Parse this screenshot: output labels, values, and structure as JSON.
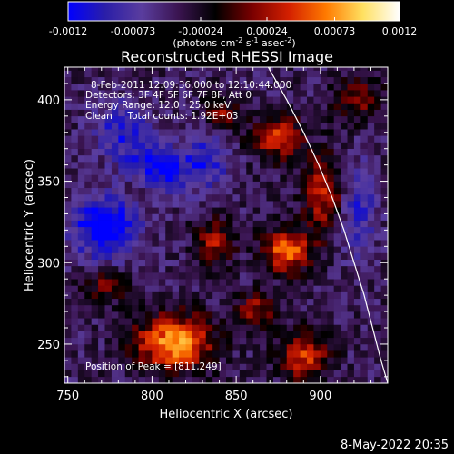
{
  "chart_data": {
    "type": "heatmap",
    "title": "Reconstructed RHESSI Image",
    "xlabel": "Heliocentric X (arcsec)",
    "ylabel": "Heliocentric Y (arcsec)",
    "xlim": [
      748,
      940
    ],
    "ylim": [
      226,
      420
    ],
    "x_ticks": [
      750,
      800,
      850,
      900
    ],
    "y_ticks": [
      250,
      300,
      350,
      400
    ],
    "colorbar": {
      "range": [
        -0.0012,
        0.0012
      ],
      "tick_values": [
        -0.0012,
        -0.00073,
        -0.00024,
        0.00024,
        0.00073,
        0.0012
      ],
      "tick_labels": [
        "-0.0012",
        "-0.00073",
        "-0.00024",
        "0.00024",
        "0.00073",
        "0.0012"
      ],
      "unit_label": "(photons cm",
      "unit_sup1": "-2",
      "unit_mid": " s",
      "unit_sup2": "-1",
      "unit_mid2": " asec",
      "unit_sup3": "-2",
      "unit_end": ")",
      "colors": [
        "#0000ff",
        "#2a1ea8",
        "#5a3d9e",
        "#3a1450",
        "#000000",
        "#7a0000",
        "#d42000",
        "#ff7a00",
        "#ffe060",
        "#ffffff"
      ]
    },
    "grid": false,
    "annotations": {
      "line1": "8-Feb-2011 12:09:36.000 to 12:10:44.000",
      "line2": "Detectors: 3F 4F 5F 6F 7F 8F, Att 0",
      "line3": "Energy Range: 12.0 - 25.0 keV",
      "line4": "Clean     Total counts: 1.92E+03",
      "peak": "Position of Peak = [811,249]"
    },
    "peak_position": [
      811,
      249
    ],
    "limb_curve": [
      [
        869,
        420
      ],
      [
        880,
        400
      ],
      [
        890,
        380
      ],
      [
        899,
        360
      ],
      [
        907,
        340
      ],
      [
        914,
        320
      ],
      [
        920,
        300
      ],
      [
        926,
        280
      ],
      [
        931,
        260
      ],
      [
        936,
        240
      ],
      [
        940,
        226
      ]
    ],
    "bright_regions": [
      {
        "x": 811,
        "y": 249,
        "intensity": 1.0,
        "sx": 16,
        "sy": 12
      },
      {
        "x": 878,
        "y": 305,
        "intensity": 0.85,
        "sx": 10,
        "sy": 9
      },
      {
        "x": 888,
        "y": 240,
        "intensity": 0.7,
        "sx": 10,
        "sy": 10
      },
      {
        "x": 872,
        "y": 375,
        "intensity": 0.75,
        "sx": 10,
        "sy": 9
      },
      {
        "x": 900,
        "y": 340,
        "intensity": 0.6,
        "sx": 9,
        "sy": 18
      },
      {
        "x": 835,
        "y": 310,
        "intensity": 0.55,
        "sx": 8,
        "sy": 10
      },
      {
        "x": 860,
        "y": 268,
        "intensity": 0.55,
        "sx": 8,
        "sy": 8
      },
      {
        "x": 920,
        "y": 400,
        "intensity": 0.45,
        "sx": 10,
        "sy": 10
      },
      {
        "x": 770,
        "y": 285,
        "intensity": 0.4,
        "sx": 10,
        "sy": 8
      },
      {
        "x": 840,
        "y": 390,
        "intensity": 0.45,
        "sx": 7,
        "sy": 8
      },
      {
        "x": 790,
        "y": 345,
        "intensity": 0.35,
        "sx": 7,
        "sy": 7
      }
    ],
    "dark_regions": [
      {
        "x": 770,
        "y": 320,
        "intensity": -0.8,
        "sx": 14,
        "sy": 14
      },
      {
        "x": 800,
        "y": 355,
        "intensity": -0.7,
        "sx": 12,
        "sy": 10
      },
      {
        "x": 830,
        "y": 360,
        "intensity": -0.5,
        "sx": 10,
        "sy": 12
      },
      {
        "x": 920,
        "y": 330,
        "intensity": -0.45,
        "sx": 8,
        "sy": 20
      },
      {
        "x": 780,
        "y": 380,
        "intensity": -0.5,
        "sx": 12,
        "sy": 12
      }
    ]
  },
  "footer": {
    "date": "8-May-2022 20:35"
  }
}
